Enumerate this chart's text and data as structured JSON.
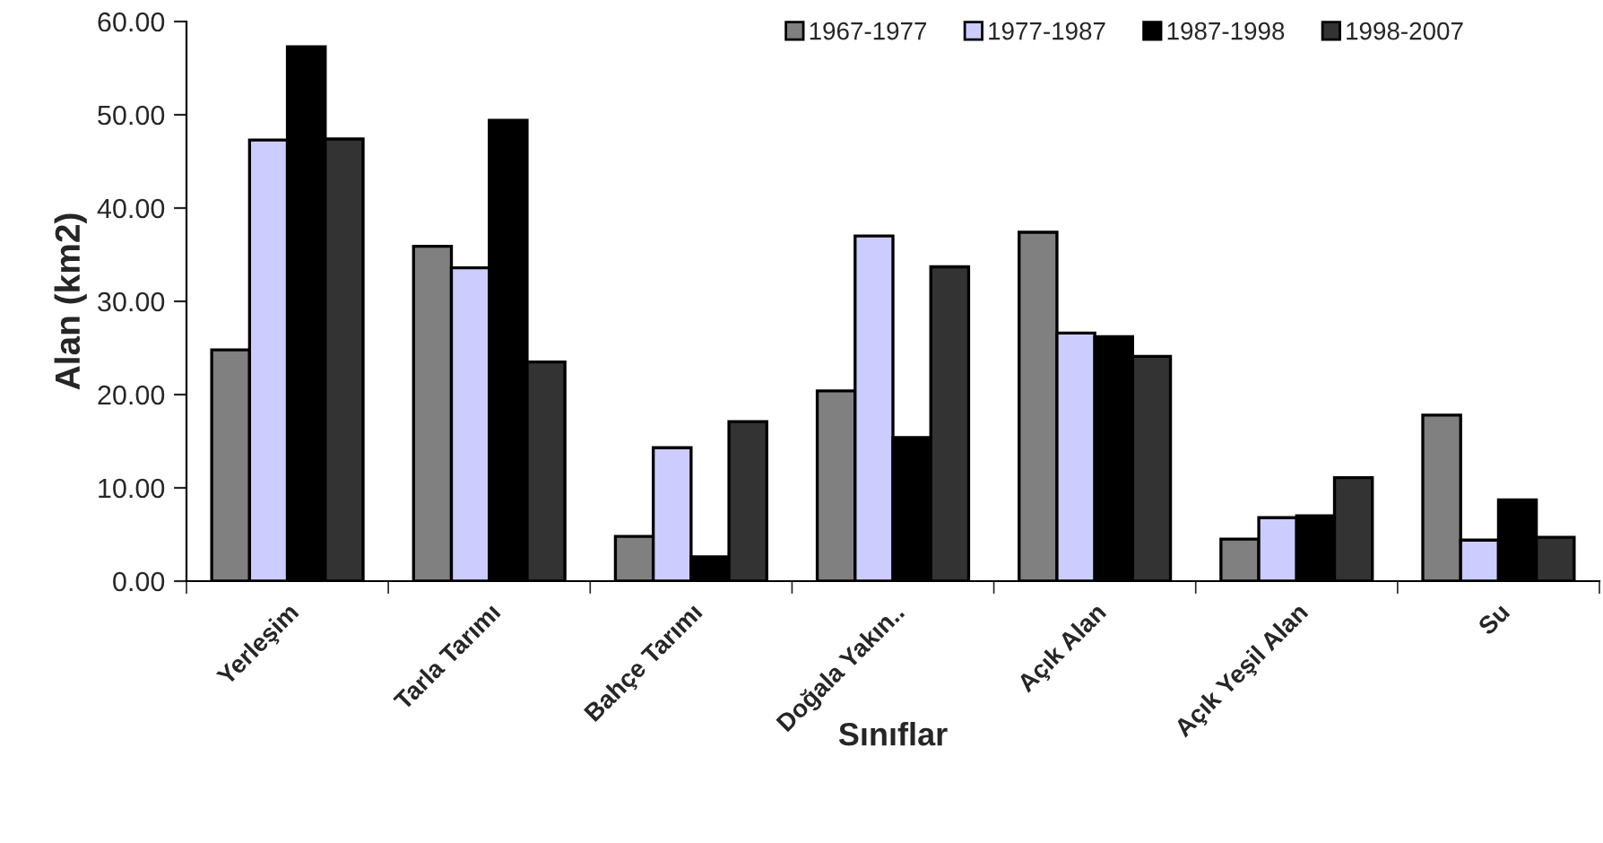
{
  "chart_data": {
    "type": "bar",
    "xlabel": "Sınıflar",
    "ylabel": "Alan (km2)",
    "categories": [
      "Yerleşim",
      "Tarla Tarımı",
      "Bahçe Tarımı",
      "Doğala Yakın..",
      "Açık Alan",
      "Açık Yeşil Alan",
      "Su"
    ],
    "series": [
      {
        "name": "1967-1977",
        "color": "#808080",
        "values": [
          24.8,
          35.9,
          4.8,
          20.4,
          37.4,
          4.5,
          17.8
        ]
      },
      {
        "name": "1977-1987",
        "color": "#ccccff",
        "values": [
          47.3,
          33.6,
          14.3,
          37.0,
          26.6,
          6.8,
          4.4
        ]
      },
      {
        "name": "1987-1998",
        "color": "#000000",
        "values": [
          57.3,
          49.4,
          2.6,
          15.4,
          26.2,
          7.0,
          8.7
        ]
      },
      {
        "name": "1998-2007",
        "color": "#333333",
        "values": [
          47.4,
          23.5,
          17.1,
          33.7,
          24.1,
          11.1,
          4.7
        ]
      }
    ],
    "ylim": [
      0,
      60
    ],
    "yticks": [
      {
        "value": 0,
        "label": "0.00"
      },
      {
        "value": 10,
        "label": "10.00"
      },
      {
        "value": 20,
        "label": "20.00"
      },
      {
        "value": 30,
        "label": "30.00"
      },
      {
        "value": 40,
        "label": "40.00"
      },
      {
        "value": 50,
        "label": "50.00"
      },
      {
        "value": 60,
        "label": "60.00"
      }
    ],
    "grid": false,
    "legend": "top right"
  }
}
